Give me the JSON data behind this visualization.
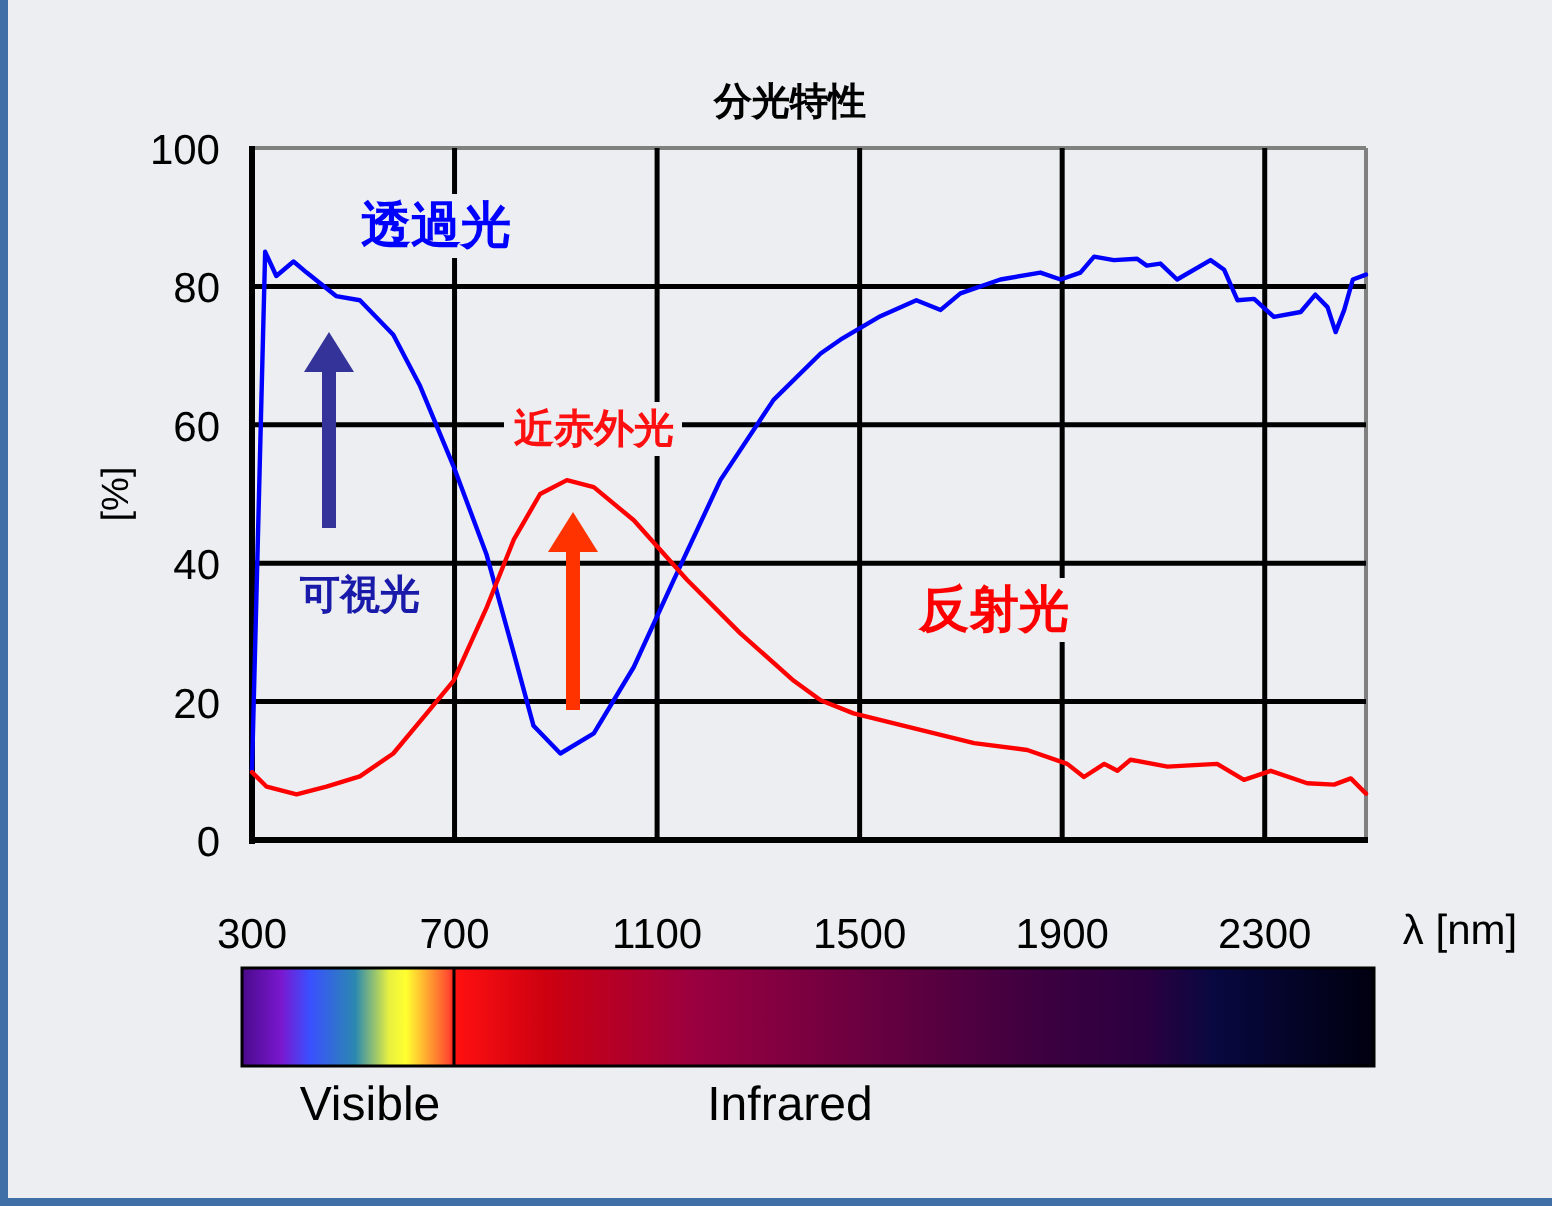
{
  "chart_data": {
    "type": "line",
    "title": "分光特性",
    "xlabel": "λ [nm]",
    "ylabel": "[%]",
    "xlim": [
      300,
      2500
    ],
    "xticks": [
      300,
      700,
      1100,
      1500,
      1900,
      2300
    ],
    "ylim": [
      0,
      100
    ],
    "yticks": [
      0,
      20,
      40,
      60,
      80,
      100
    ],
    "grid": true,
    "annotations": [
      "近赤外光",
      "可視光",
      "Visible",
      "Infrared"
    ],
    "series": [
      {
        "name": "透過光",
        "color": "#0000ff",
        "x": [
          300,
          326,
          348,
          382,
          408,
          466,
          513,
          579,
          632,
          698,
          763,
          817,
          856,
          909,
          975,
          1054,
          1133,
          1225,
          1330,
          1423,
          1462,
          1541,
          1612,
          1660,
          1699,
          1778,
          1857,
          1897,
          1936,
          1963,
          2002,
          2048,
          2067,
          2094,
          2127,
          2193,
          2220,
          2246,
          2279,
          2318,
          2371,
          2400,
          2424,
          2440,
          2457,
          2474,
          2500
        ],
        "values": [
          10,
          85,
          81.5,
          83.6,
          82,
          78.6,
          78,
          73,
          65.6,
          54,
          41.3,
          27,
          16.5,
          12.5,
          15.4,
          25,
          37.6,
          52,
          63.6,
          70.3,
          72.3,
          75.7,
          78,
          76.6,
          79,
          81,
          82,
          81,
          82,
          84.3,
          83.8,
          84,
          83,
          83.3,
          81,
          83.8,
          82.4,
          78,
          78.2,
          75.6,
          76.3,
          78.8,
          77,
          73.4,
          76.6,
          81,
          81.7
        ]
      },
      {
        "name": "反射光",
        "color": "#ff0000",
        "x": [
          300,
          329,
          388,
          447,
          513,
          579,
          645,
          698,
          764,
          817,
          869,
          922,
          975,
          1054,
          1159,
          1264,
          1370,
          1423,
          1488,
          1620,
          1726,
          1831,
          1910,
          1943,
          1983,
          2009,
          2035,
          2108,
          2206,
          2259,
          2312,
          2384,
          2437,
          2470,
          2500
        ],
        "values": [
          9.8,
          7.7,
          6.6,
          7.7,
          9.2,
          12.5,
          18.3,
          23,
          33.7,
          43.4,
          50,
          52,
          51,
          46.2,
          37.6,
          29.9,
          23,
          20.2,
          18.3,
          15.9,
          14,
          13,
          11,
          9.1,
          11,
          10,
          11.6,
          10.6,
          11,
          8.7,
          10,
          8.2,
          8,
          8.9,
          6.7
        ]
      }
    ]
  }
}
